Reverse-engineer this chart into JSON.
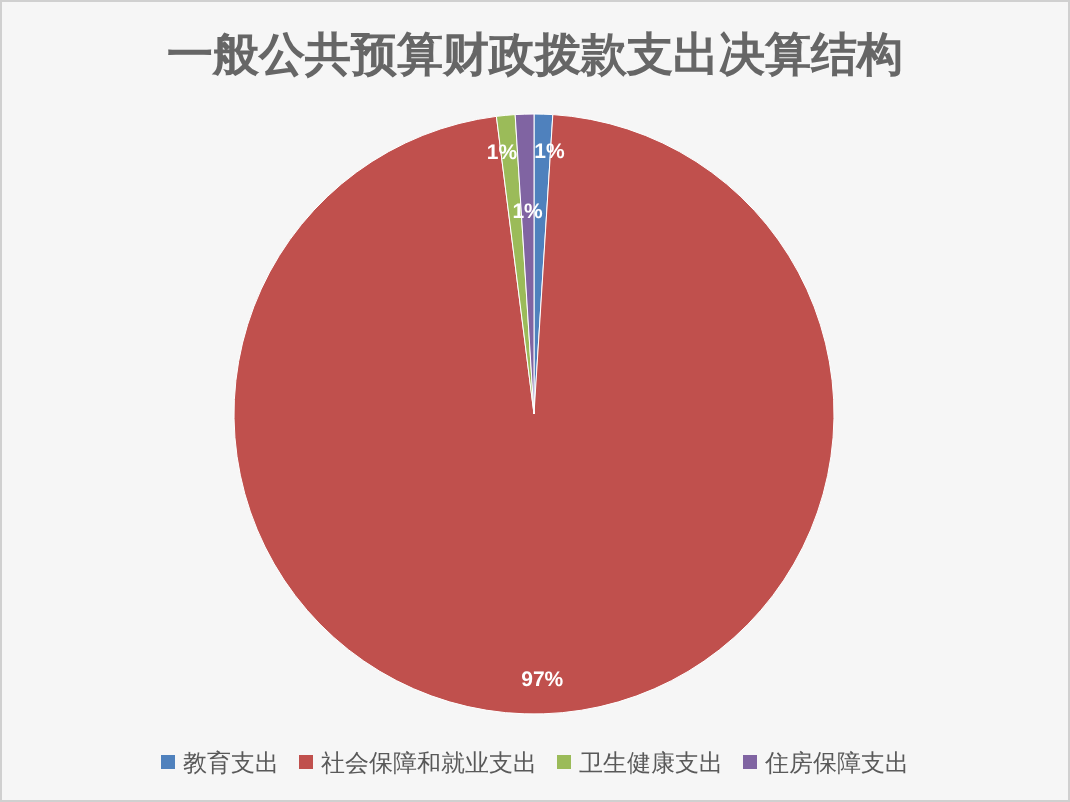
{
  "chart_data": {
    "type": "pie",
    "title": "一般公共预算财政拨款支出决算结构",
    "categories": [
      "教育支出",
      "社会保障和就业支出",
      "卫生健康支出",
      "住房保障支出"
    ],
    "values": [
      1,
      97,
      1,
      1
    ],
    "colors": [
      "#4f81bd",
      "#c0504d",
      "#9bbb59",
      "#8064a2"
    ],
    "value_labels": [
      "1%",
      "97%",
      "1%",
      "1%"
    ],
    "legend": "bottom"
  }
}
